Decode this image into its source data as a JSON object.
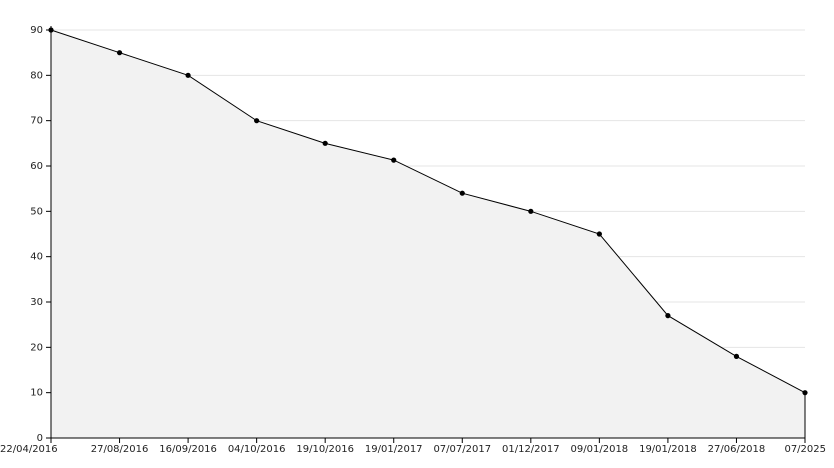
{
  "chart_data": {
    "type": "area",
    "categories": [
      "22/04/2016",
      "27/08/2016",
      "16/09/2016",
      "04/10/2016",
      "19/10/2016",
      "19/01/2017",
      "07/07/2017",
      "01/12/2017",
      "09/01/2018",
      "19/01/2018",
      "27/06/2018",
      "07/2025"
    ],
    "values": [
      90,
      85,
      80,
      70,
      65,
      61.3,
      54,
      50,
      45,
      27,
      18,
      10
    ],
    "color": "#000000",
    "fill": "#f2f2f2",
    "ylim": [
      0,
      90
    ],
    "yticks": [
      0,
      10,
      20,
      30,
      40,
      50,
      60,
      70,
      80,
      90
    ],
    "grid": true
  }
}
